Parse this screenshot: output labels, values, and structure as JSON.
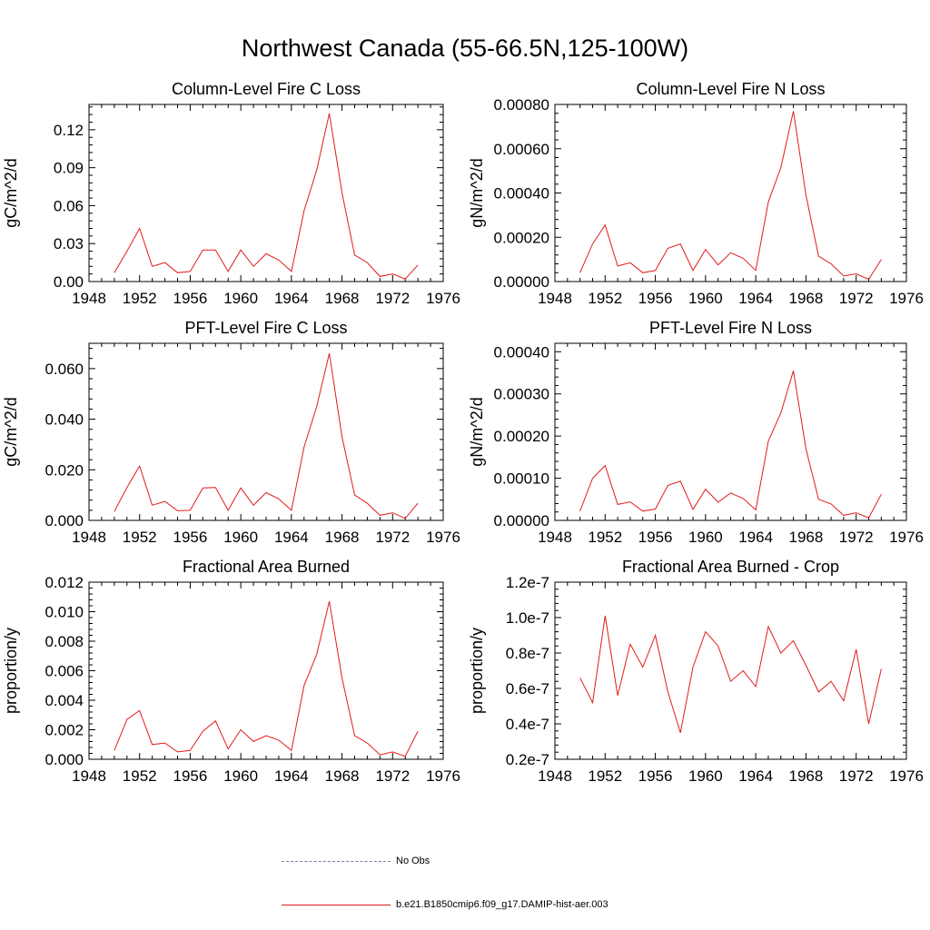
{
  "figure": {
    "title": "Northwest Canada (55-66.5N,125-100W)"
  },
  "legend": [
    {
      "label": "No Obs",
      "style": "dashed",
      "color": "#6f7fb5"
    },
    {
      "label": "b.e21.B1850cmip6.f09_g17.DAMIP-hist-aer.003",
      "style": "solid",
      "color": "#e21b1b"
    }
  ],
  "chart_data": [
    {
      "type": "line",
      "title": "Column-Level Fire C Loss",
      "ylabel": "gC/m^2/d",
      "xlim": [
        1948,
        1976
      ],
      "ylim": [
        0,
        0.14
      ],
      "xticks": [
        1948,
        1952,
        1956,
        1960,
        1964,
        1968,
        1972,
        1976
      ],
      "yticks": [
        0,
        0.03,
        0.06,
        0.09,
        0.12
      ],
      "ytick_labels": [
        "0.00",
        "0.03",
        "0.06",
        "0.09",
        "0.12"
      ],
      "x": [
        1950,
        1951,
        1952,
        1953,
        1954,
        1955,
        1956,
        1957,
        1958,
        1959,
        1960,
        1961,
        1962,
        1963,
        1964,
        1965,
        1966,
        1967,
        1968,
        1969,
        1970,
        1971,
        1972,
        1973,
        1974
      ],
      "series": [
        {
          "color": "#e21b1b",
          "values": [
            0.007,
            0.024,
            0.042,
            0.012,
            0.015,
            0.007,
            0.008,
            0.025,
            0.025,
            0.008,
            0.025,
            0.012,
            0.022,
            0.017,
            0.008,
            0.056,
            0.088,
            0.133,
            0.07,
            0.021,
            0.015,
            0.004,
            0.006,
            0.002,
            0.013
          ]
        }
      ]
    },
    {
      "type": "line",
      "title": "Column-Level Fire N Loss",
      "ylabel": "gN/m^2/d",
      "xlim": [
        1948,
        1976
      ],
      "ylim": [
        0,
        0.0008
      ],
      "xticks": [
        1948,
        1952,
        1956,
        1960,
        1964,
        1968,
        1972,
        1976
      ],
      "yticks": [
        0,
        0.0002,
        0.0004,
        0.0006,
        0.0008
      ],
      "ytick_labels": [
        "0.00000",
        "0.00020",
        "0.00040",
        "0.00060",
        "0.00080"
      ],
      "x": [
        1950,
        1951,
        1952,
        1953,
        1954,
        1955,
        1956,
        1957,
        1958,
        1959,
        1960,
        1961,
        1962,
        1963,
        1964,
        1965,
        1966,
        1967,
        1968,
        1969,
        1970,
        1971,
        1972,
        1973,
        1974
      ],
      "series": [
        {
          "color": "#e21b1b",
          "values": [
            4e-05,
            0.00017,
            0.000255,
            7e-05,
            8.5e-05,
            4e-05,
            5e-05,
            0.00015,
            0.00017,
            5e-05,
            0.000145,
            7.5e-05,
            0.00013,
            0.000105,
            5e-05,
            0.00036,
            0.000515,
            0.00077,
            0.00039,
            0.000115,
            8e-05,
            2.5e-05,
            3.5e-05,
            1e-05,
            0.0001
          ]
        }
      ]
    },
    {
      "type": "line",
      "title": "PFT-Level Fire C Loss",
      "ylabel": "gC/m^2/d",
      "xlim": [
        1948,
        1976
      ],
      "ylim": [
        0,
        0.07
      ],
      "xticks": [
        1948,
        1952,
        1956,
        1960,
        1964,
        1968,
        1972,
        1976
      ],
      "yticks": [
        0,
        0.02,
        0.04,
        0.06
      ],
      "ytick_labels": [
        "0.000",
        "0.020",
        "0.040",
        "0.060"
      ],
      "x": [
        1950,
        1951,
        1952,
        1953,
        1954,
        1955,
        1956,
        1957,
        1958,
        1959,
        1960,
        1961,
        1962,
        1963,
        1964,
        1965,
        1966,
        1967,
        1968,
        1969,
        1970,
        1971,
        1972,
        1973,
        1974
      ],
      "series": [
        {
          "color": "#e21b1b",
          "values": [
            0.0035,
            0.013,
            0.0215,
            0.006,
            0.0075,
            0.0038,
            0.004,
            0.0128,
            0.013,
            0.004,
            0.0128,
            0.006,
            0.011,
            0.0085,
            0.004,
            0.029,
            0.045,
            0.066,
            0.033,
            0.01,
            0.0068,
            0.002,
            0.003,
            0.0008,
            0.0068
          ]
        }
      ]
    },
    {
      "type": "line",
      "title": "PFT-Level Fire N Loss",
      "ylabel": "gN/m^2/d",
      "xlim": [
        1948,
        1976
      ],
      "ylim": [
        0,
        0.00042
      ],
      "xticks": [
        1948,
        1952,
        1956,
        1960,
        1964,
        1968,
        1972,
        1976
      ],
      "yticks": [
        0,
        0.0001,
        0.0002,
        0.0003,
        0.0004
      ],
      "ytick_labels": [
        "0.00000",
        "0.00010",
        "0.00020",
        "0.00030",
        "0.00040"
      ],
      "x": [
        1950,
        1951,
        1952,
        1953,
        1954,
        1955,
        1956,
        1957,
        1958,
        1959,
        1960,
        1961,
        1962,
        1963,
        1964,
        1965,
        1966,
        1967,
        1968,
        1969,
        1970,
        1971,
        1972,
        1973,
        1974
      ],
      "series": [
        {
          "color": "#e21b1b",
          "values": [
            2.2e-05,
            0.0001,
            0.00013,
            3.8e-05,
            4.4e-05,
            2.2e-05,
            2.7e-05,
            8.3e-05,
            9.3e-05,
            2.6e-05,
            7.4e-05,
            4.3e-05,
            6.5e-05,
            5.2e-05,
            2.5e-05,
            0.000188,
            0.000255,
            0.000355,
            0.00017,
            5e-05,
            3.9e-05,
            1.2e-05,
            1.8e-05,
            6e-06,
            6.2e-05
          ]
        }
      ]
    },
    {
      "type": "line",
      "title": "Fractional Area Burned",
      "ylabel": "proportion/y",
      "xlim": [
        1948,
        1976
      ],
      "ylim": [
        0,
        0.012
      ],
      "xticks": [
        1948,
        1952,
        1956,
        1960,
        1964,
        1968,
        1972,
        1976
      ],
      "yticks": [
        0,
        0.002,
        0.004,
        0.006,
        0.008,
        0.01,
        0.012
      ],
      "ytick_labels": [
        "0.000",
        "0.002",
        "0.004",
        "0.006",
        "0.008",
        "0.010",
        "0.012"
      ],
      "x": [
        1950,
        1951,
        1952,
        1953,
        1954,
        1955,
        1956,
        1957,
        1958,
        1959,
        1960,
        1961,
        1962,
        1963,
        1964,
        1965,
        1966,
        1967,
        1968,
        1969,
        1970,
        1971,
        1972,
        1973,
        1974
      ],
      "series": [
        {
          "color": "#e21b1b",
          "values": [
            0.0006,
            0.0027,
            0.0033,
            0.001,
            0.0011,
            0.0005,
            0.0006,
            0.0019,
            0.0026,
            0.0007,
            0.002,
            0.0012,
            0.0016,
            0.0013,
            0.0006,
            0.005,
            0.0071,
            0.0107,
            0.0055,
            0.0016,
            0.0011,
            0.0003,
            0.0005,
            0.0002,
            0.0019
          ]
        }
      ]
    },
    {
      "type": "line",
      "title": "Fractional Area Burned - Crop",
      "ylabel": "proportion/y",
      "xlim": [
        1948,
        1976
      ],
      "ylim": [
        2e-08,
        1.2e-07
      ],
      "xticks": [
        1948,
        1952,
        1956,
        1960,
        1964,
        1968,
        1972,
        1976
      ],
      "yticks": [
        2e-08,
        4e-08,
        6e-08,
        8e-08,
        1e-07,
        1.2e-07
      ],
      "ytick_labels": [
        "0.2e-7",
        "0.4e-7",
        "0.6e-7",
        "0.8e-7",
        "1.0e-7",
        "1.2e-7"
      ],
      "x": [
        1950,
        1951,
        1952,
        1953,
        1954,
        1955,
        1956,
        1957,
        1958,
        1959,
        1960,
        1961,
        1962,
        1963,
        1964,
        1965,
        1966,
        1967,
        1968,
        1969,
        1970,
        1971,
        1972,
        1973,
        1974
      ],
      "series": [
        {
          "color": "#e21b1b",
          "values": [
            6.6e-08,
            5.2e-08,
            1.01e-07,
            5.6e-08,
            8.5e-08,
            7.2e-08,
            9e-08,
            5.8e-08,
            3.5e-08,
            7.2e-08,
            9.2e-08,
            8.4e-08,
            6.4e-08,
            7e-08,
            6.1e-08,
            9.5e-08,
            8e-08,
            8.7e-08,
            7.3e-08,
            5.8e-08,
            6.4e-08,
            5.3e-08,
            8.2e-08,
            4e-08,
            7.1e-08
          ]
        }
      ]
    }
  ]
}
